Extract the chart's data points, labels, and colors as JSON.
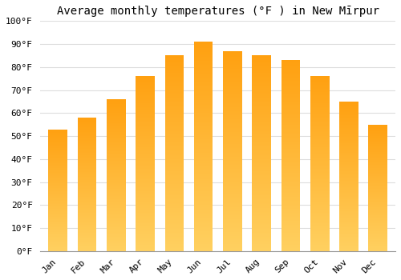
{
  "title": "Average monthly temperatures (°F ) in New Mīrpur",
  "months": [
    "Jan",
    "Feb",
    "Mar",
    "Apr",
    "May",
    "Jun",
    "Jul",
    "Aug",
    "Sep",
    "Oct",
    "Nov",
    "Dec"
  ],
  "values": [
    53,
    58,
    66,
    76,
    85,
    91,
    87,
    85,
    83,
    76,
    65,
    55
  ],
  "bar_color_bottom": "#FFD060",
  "bar_color_top": "#FFA010",
  "ylim": [
    0,
    100
  ],
  "yticks": [
    0,
    10,
    20,
    30,
    40,
    50,
    60,
    70,
    80,
    90,
    100
  ],
  "background_color": "#FFFFFF",
  "grid_color": "#DDDDDD",
  "title_fontsize": 10,
  "tick_fontsize": 8,
  "font_family": "monospace",
  "bar_width": 0.65
}
